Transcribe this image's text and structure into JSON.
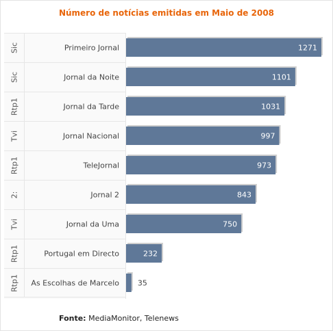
{
  "chart_data": {
    "type": "bar",
    "orientation": "horizontal",
    "title": "Número de notícias emitidas em Maio de 2008",
    "categories": [
      "Primeiro Jornal",
      "Jornal da Noite",
      "Jornal da Tarde",
      "Jornal Nacional",
      "TeleJornal",
      "Jornal 2",
      "Jornal da Uma",
      "Portugal em Directo",
      "As Escolhas de Marcelo"
    ],
    "groups": [
      "Sic",
      "Sic",
      "Rtp1",
      "Tvi",
      "Rtp1",
      "2:",
      "Tvi",
      "Rtp1",
      "Rtp1"
    ],
    "values": [
      1271,
      1101,
      1031,
      997,
      973,
      843,
      750,
      232,
      35
    ],
    "xlim": [
      0,
      1300
    ],
    "bar_color": "#5f7898",
    "label_color_inside": "#ffffff",
    "label_color_outside": "#444444",
    "legend": "none",
    "grid": false
  },
  "source": {
    "label": "Fonte:",
    "text": "MediaMonitor, Telenews"
  },
  "colors": {
    "title": "#e8650a"
  }
}
